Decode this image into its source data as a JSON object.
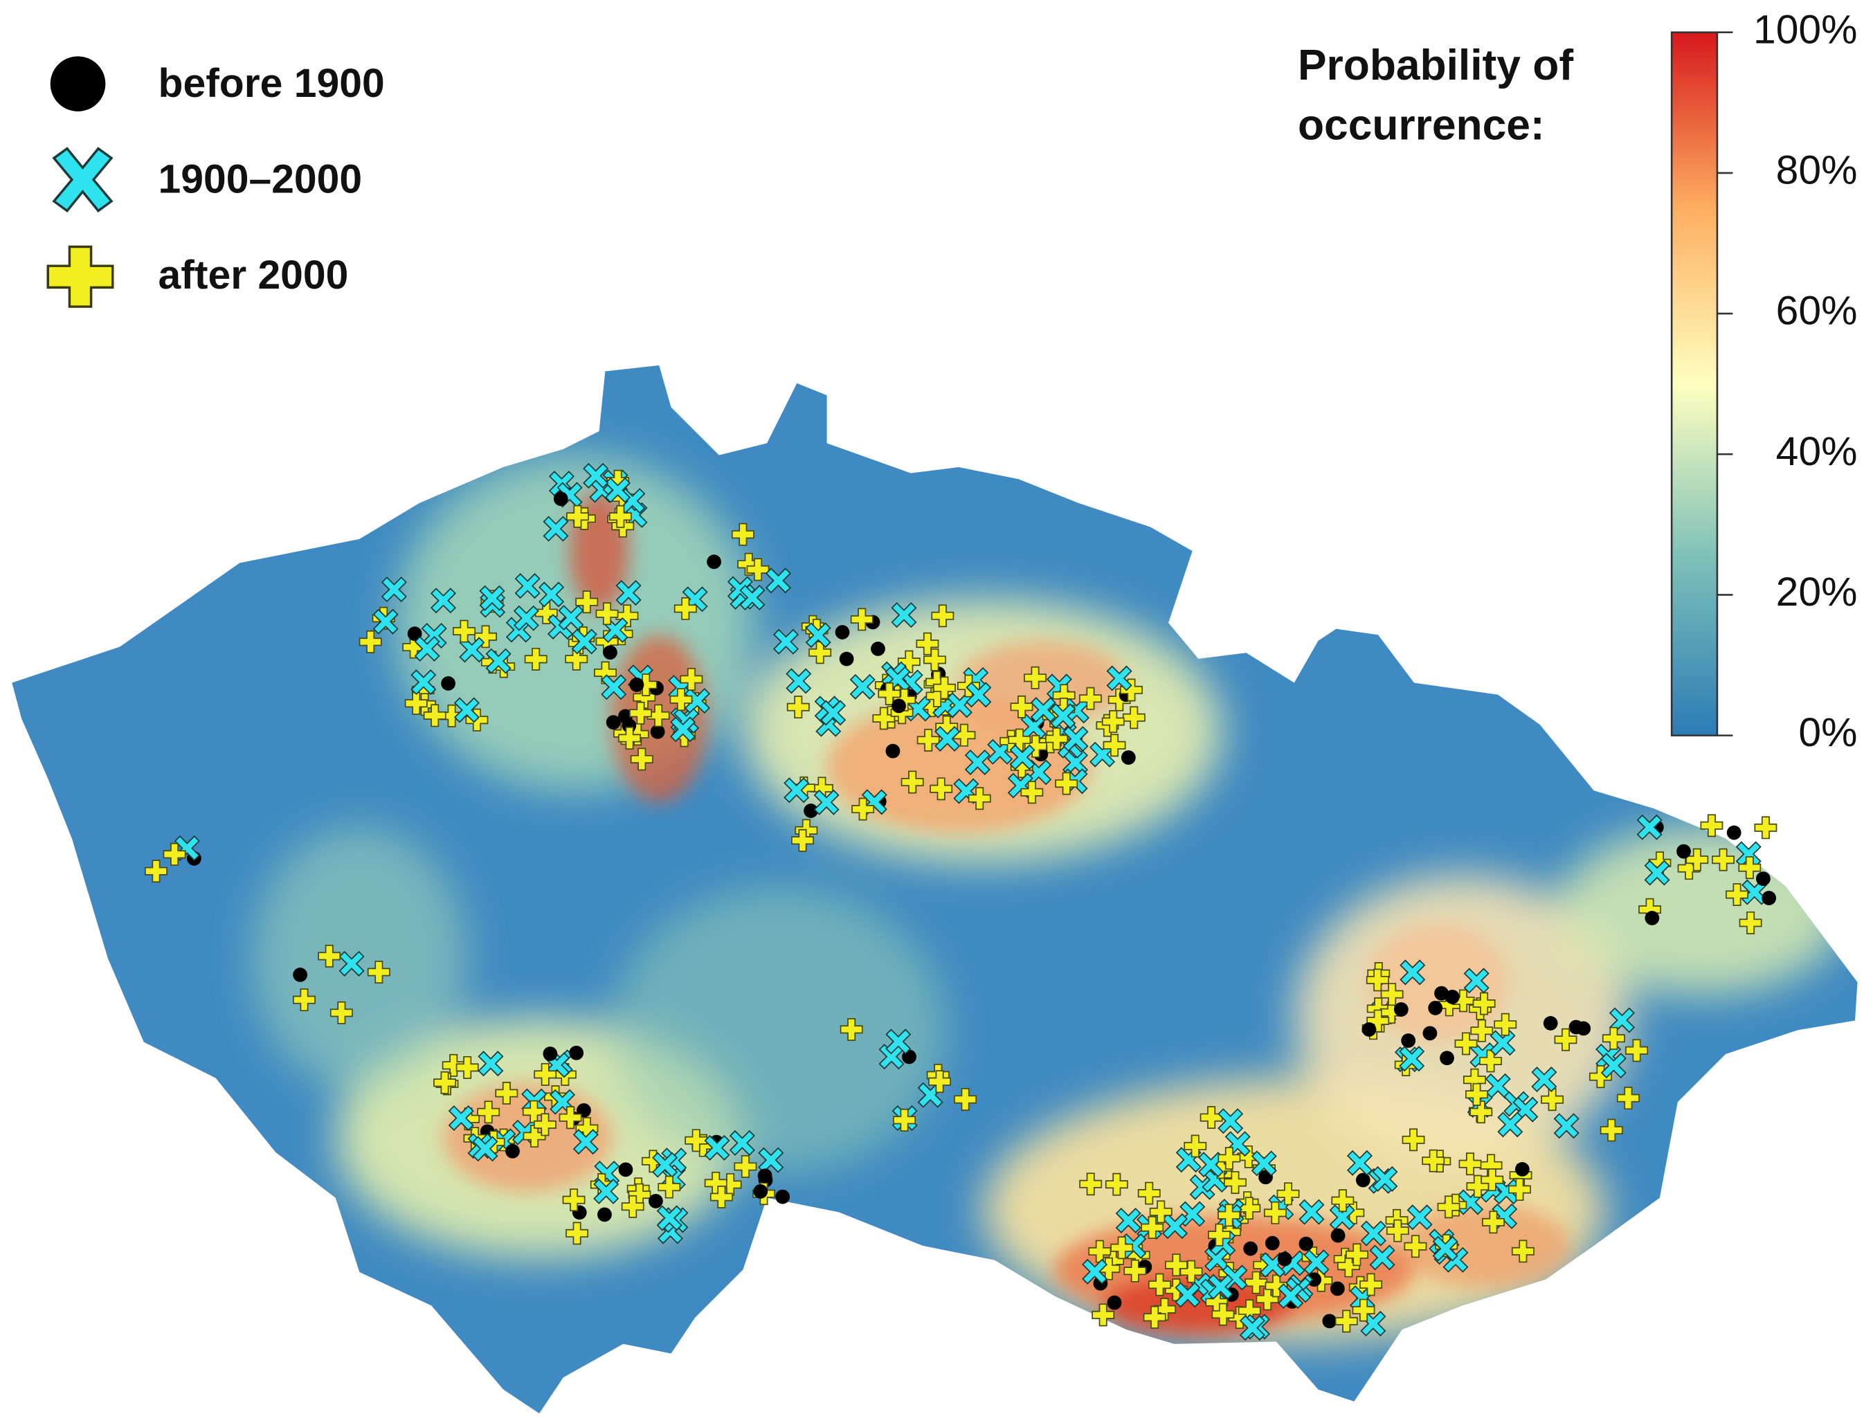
{
  "legend": {
    "items": [
      {
        "label": "before 1900"
      },
      {
        "label": "1900–2000"
      },
      {
        "label": "after 2000"
      }
    ]
  },
  "colorbar": {
    "title": [
      "Probability of",
      "occurrence:"
    ],
    "range": [
      0,
      100
    ],
    "colors": [
      "#2c7bb6",
      "#7cc0b8",
      "#ffffbf",
      "#fdae61",
      "#d7191c"
    ],
    "ticks": [
      {
        "value": 0,
        "label": "0%"
      },
      {
        "value": 20,
        "label": "20%"
      },
      {
        "value": 40,
        "label": "40%"
      },
      {
        "value": 60,
        "label": "60%"
      },
      {
        "value": 80,
        "label": "80%"
      },
      {
        "value": 100,
        "label": "100%"
      }
    ]
  }
}
